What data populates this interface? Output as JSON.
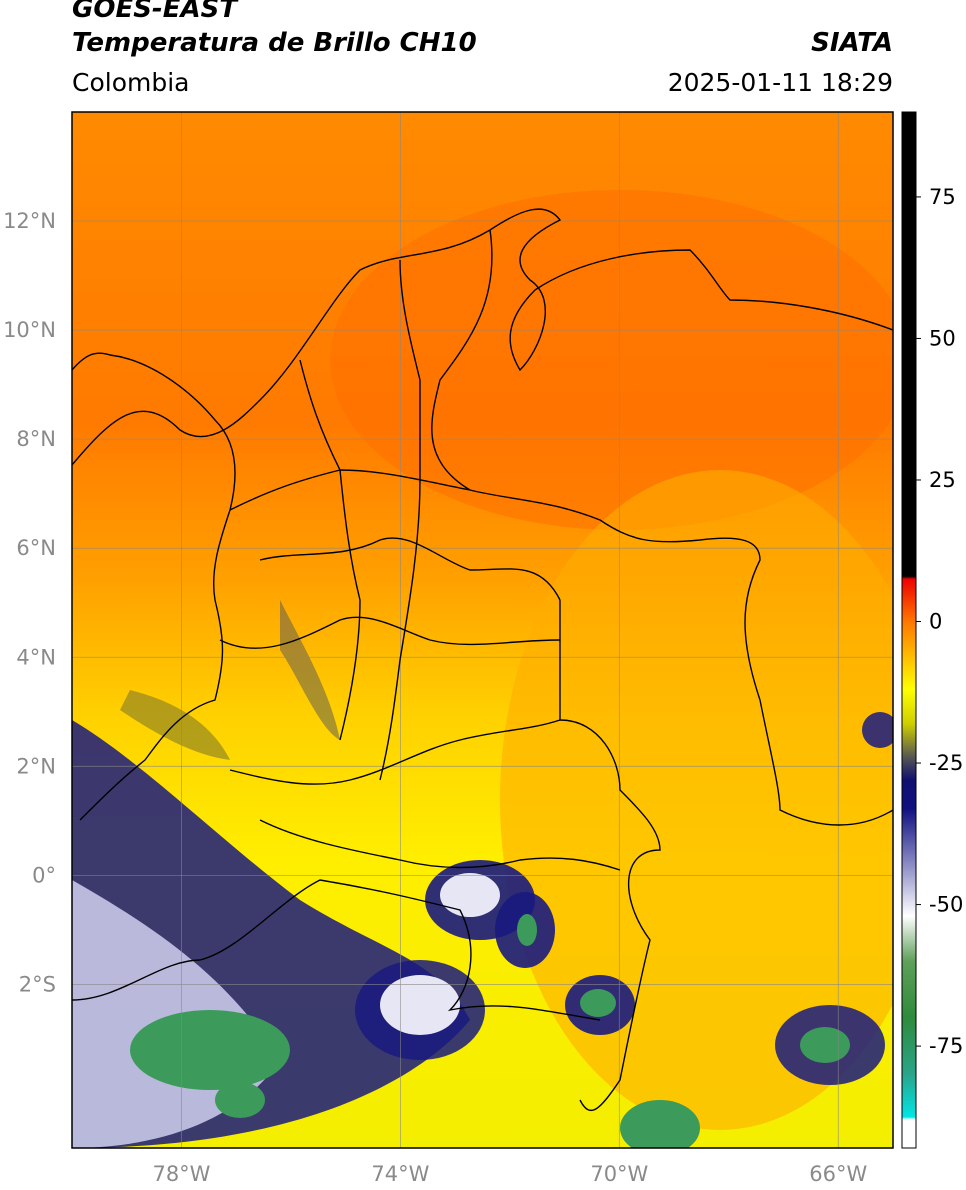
{
  "header": {
    "satellite": "GOES-EAST",
    "product": "Temperatura de Brillo CH10",
    "organization": "SIATA",
    "region": "Colombia",
    "timestamp": "2025-01-11 18:29"
  },
  "map": {
    "lon_range": [
      -80,
      -65
    ],
    "lat_range": [
      -5,
      14
    ],
    "gridlines": true,
    "lon_ticks": [
      {
        "value": -78,
        "label": "78°W"
      },
      {
        "value": -74,
        "label": "74°W"
      },
      {
        "value": -70,
        "label": "70°W"
      },
      {
        "value": -66,
        "label": "66°W"
      }
    ],
    "lat_ticks": [
      {
        "value": 12,
        "label": "12°N"
      },
      {
        "value": 10,
        "label": "10°N"
      },
      {
        "value": 8,
        "label": "8°N"
      },
      {
        "value": 6,
        "label": "6°N"
      },
      {
        "value": 4,
        "label": "4°N"
      },
      {
        "value": 2,
        "label": "2°N"
      },
      {
        "value": 0,
        "label": "0°"
      },
      {
        "value": -2,
        "label": "2°S"
      }
    ]
  },
  "colorbar": {
    "range": [
      -93,
      90
    ],
    "ticks": [
      {
        "value": 75,
        "label": "75"
      },
      {
        "value": 50,
        "label": "50"
      },
      {
        "value": 25,
        "label": "25"
      },
      {
        "value": 0,
        "label": "0"
      },
      {
        "value": -25,
        "label": "-25"
      },
      {
        "value": -50,
        "label": "-50"
      },
      {
        "value": -75,
        "label": "-75"
      }
    ],
    "stops": [
      {
        "value": -93,
        "color": "#ffffff"
      },
      {
        "value": -88,
        "color": "#ffffff"
      },
      {
        "value": -87.5,
        "color": "#00e5e5"
      },
      {
        "value": -80,
        "color": "#2aa58a"
      },
      {
        "value": -70,
        "color": "#2e8b3c"
      },
      {
        "value": -60,
        "color": "#5fa05a"
      },
      {
        "value": -52,
        "color": "#ffffff"
      },
      {
        "value": -42,
        "color": "#8080c0"
      },
      {
        "value": -33,
        "color": "#101080"
      },
      {
        "value": -28,
        "color": "#101070"
      },
      {
        "value": -24,
        "color": "#555555"
      },
      {
        "value": -18,
        "color": "#cfcf00"
      },
      {
        "value": -12,
        "color": "#ffff00"
      },
      {
        "value": -6,
        "color": "#ffbb00"
      },
      {
        "value": 0,
        "color": "#ff7700"
      },
      {
        "value": 7.5,
        "color": "#ee0000"
      },
      {
        "value": 8,
        "color": "#000000"
      },
      {
        "value": 90,
        "color": "#000000"
      }
    ]
  }
}
